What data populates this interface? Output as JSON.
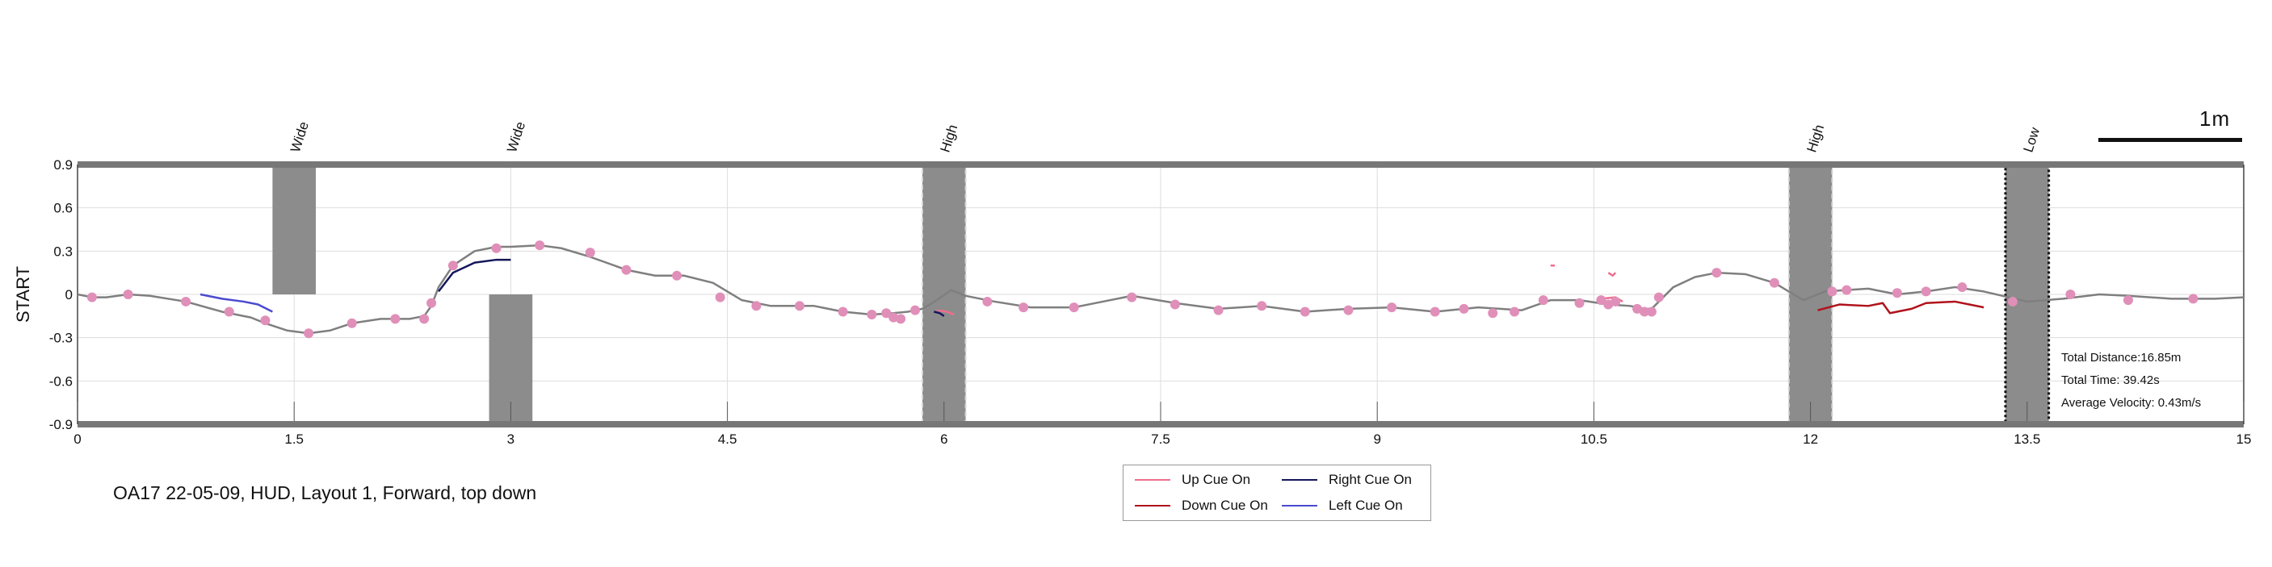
{
  "colors": {
    "path": "#7f7f7f",
    "marker": "#e08fb9",
    "obstacle": "#8c8c8c",
    "up_cue": "#ee6e8e",
    "down_cue": "#b0121b",
    "right_cue": "#14165a",
    "left_cue": "#4a4ad0",
    "frame": "#777777",
    "grid": "#dddddd"
  },
  "chart_data": {
    "type": "line",
    "title": "",
    "xlabel": "",
    "ylabel": "START",
    "xlim": [
      0,
      15
    ],
    "ylim": [
      -0.9,
      0.9
    ],
    "grid": true,
    "x_ticks": [
      "0",
      "1.5",
      "3",
      "4.5",
      "6",
      "7.5",
      "9",
      "10.5",
      "12",
      "13.5",
      "15"
    ],
    "y_ticks": [
      "0.9",
      "0.6",
      "0.3",
      "0",
      "-0.3",
      "-0.6",
      "-0.9"
    ],
    "path": {
      "x": [
        0,
        0.1,
        0.2,
        0.35,
        0.5,
        0.75,
        1.0,
        1.2,
        1.3,
        1.45,
        1.6,
        1.75,
        1.9,
        2.1,
        2.3,
        2.4,
        2.45,
        2.5,
        2.6,
        2.75,
        2.9,
        3.0,
        3.2,
        3.35,
        3.55,
        3.8,
        4.0,
        4.2,
        4.4,
        4.6,
        4.8,
        5.1,
        5.3,
        5.5,
        5.65,
        5.75,
        5.85,
        5.95,
        6.05,
        6.15,
        6.35,
        6.6,
        6.9,
        7.1,
        7.3,
        7.6,
        7.9,
        8.2,
        8.5,
        8.8,
        9.1,
        9.4,
        9.7,
        10.0,
        10.2,
        10.4,
        10.6,
        10.75,
        10.85,
        10.9,
        10.95,
        11.05,
        11.2,
        11.35,
        11.55,
        11.75,
        11.95,
        12.1,
        12.25,
        12.4,
        12.6,
        12.8,
        13.0,
        13.2,
        13.5,
        13.75,
        14.0,
        14.2,
        14.5,
        14.8,
        15.0
      ],
      "y": [
        0.0,
        -0.02,
        -0.02,
        0.0,
        -0.01,
        -0.05,
        -0.12,
        -0.16,
        -0.2,
        -0.25,
        -0.27,
        -0.25,
        -0.2,
        -0.17,
        -0.17,
        -0.15,
        -0.08,
        0.05,
        0.2,
        0.3,
        0.33,
        0.33,
        0.34,
        0.32,
        0.26,
        0.17,
        0.13,
        0.13,
        0.08,
        -0.04,
        -0.08,
        -0.08,
        -0.12,
        -0.14,
        -0.13,
        -0.12,
        -0.1,
        -0.04,
        0.03,
        -0.01,
        -0.05,
        -0.09,
        -0.09,
        -0.05,
        -0.01,
        -0.06,
        -0.1,
        -0.08,
        -0.12,
        -0.1,
        -0.09,
        -0.12,
        -0.09,
        -0.11,
        -0.04,
        -0.04,
        -0.07,
        -0.08,
        -0.1,
        -0.1,
        -0.05,
        0.05,
        0.12,
        0.15,
        0.14,
        0.08,
        -0.04,
        0.02,
        0.03,
        0.04,
        0.0,
        0.02,
        0.05,
        0.02,
        -0.05,
        -0.03,
        0.0,
        -0.01,
        -0.03,
        -0.03,
        -0.02
      ]
    },
    "markers": {
      "x": [
        0.1,
        0.35,
        0.75,
        1.05,
        1.3,
        1.6,
        1.9,
        2.2,
        2.4,
        2.45,
        2.6,
        2.9,
        3.2,
        3.55,
        3.8,
        4.15,
        4.45,
        4.7,
        5.0,
        5.3,
        5.5,
        5.6,
        5.65,
        5.7,
        5.8,
        6.3,
        6.55,
        6.9,
        7.3,
        7.6,
        7.9,
        8.2,
        8.5,
        8.8,
        9.1,
        9.4,
        9.6,
        9.8,
        9.95,
        10.15,
        10.4,
        10.55,
        10.6,
        10.65,
        10.8,
        10.85,
        10.9,
        10.95,
        11.35,
        11.75,
        12.15,
        12.25,
        12.6,
        12.8,
        13.05,
        13.4,
        13.8,
        14.2,
        14.65
      ],
      "y": [
        -0.02,
        0.0,
        -0.05,
        -0.12,
        -0.18,
        -0.27,
        -0.2,
        -0.17,
        -0.17,
        -0.06,
        0.2,
        0.32,
        0.34,
        0.29,
        0.17,
        0.13,
        -0.02,
        -0.08,
        -0.08,
        -0.12,
        -0.14,
        -0.13,
        -0.16,
        -0.17,
        -0.11,
        -0.05,
        -0.09,
        -0.09,
        -0.02,
        -0.07,
        -0.11,
        -0.08,
        -0.12,
        -0.11,
        -0.09,
        -0.12,
        -0.1,
        -0.13,
        -0.12,
        -0.04,
        -0.06,
        -0.04,
        -0.07,
        -0.05,
        -0.1,
        -0.12,
        -0.12,
        -0.02,
        0.15,
        0.08,
        0.02,
        0.03,
        0.01,
        0.02,
        0.05,
        -0.05,
        0.0,
        -0.04,
        -0.03
      ]
    },
    "obstacles": [
      {
        "label": "Wide",
        "x0": 1.35,
        "x1": 1.65,
        "y0": 0.0,
        "y1": 0.9,
        "style": "solid"
      },
      {
        "label": "Wide",
        "x0": 2.85,
        "x1": 3.15,
        "y0": -0.9,
        "y1": 0.0,
        "style": "solid"
      },
      {
        "label": "High",
        "x0": 5.85,
        "x1": 6.15,
        "y0": -0.9,
        "y1": 0.9,
        "style": "dashed-light"
      },
      {
        "label": "High",
        "x0": 11.85,
        "x1": 12.15,
        "y0": -0.9,
        "y1": 0.9,
        "style": "dashed-light"
      },
      {
        "label": "Low",
        "x0": 13.35,
        "x1": 13.65,
        "y0": -0.9,
        "y1": 0.9,
        "style": "dotted-dark"
      }
    ],
    "cues": [
      {
        "name": "Left Cue On",
        "color_key": "left_cue",
        "x": [
          0.85,
          1.0,
          1.15,
          1.25,
          1.35
        ],
        "y": [
          0.0,
          -0.03,
          -0.05,
          -0.07,
          -0.12
        ]
      },
      {
        "name": "Right Cue On",
        "color_key": "right_cue",
        "x": [
          2.5,
          2.6,
          2.75,
          2.9,
          3.0
        ],
        "y": [
          0.02,
          0.15,
          0.22,
          0.24,
          0.24
        ]
      },
      {
        "name": "Right Cue On",
        "color_key": "right_cue",
        "x": [
          5.93,
          5.97,
          6.0
        ],
        "y": [
          -0.12,
          -0.13,
          -0.15
        ]
      },
      {
        "name": "Up Cue On",
        "color_key": "up_cue",
        "x": [
          5.95,
          6.02,
          6.07
        ],
        "y": [
          -0.11,
          -0.12,
          -0.14
        ]
      },
      {
        "name": "Up Cue On",
        "color_key": "up_cue",
        "x": [
          10.2,
          10.23
        ],
        "y": [
          0.2,
          0.2
        ]
      },
      {
        "name": "Up Cue On",
        "color_key": "up_cue",
        "x": [
          10.6,
          10.63,
          10.65
        ],
        "y": [
          0.15,
          0.13,
          0.15
        ]
      },
      {
        "name": "Up Cue On",
        "color_key": "up_cue",
        "x": [
          10.55,
          10.65,
          10.7
        ],
        "y": [
          -0.03,
          -0.02,
          -0.05
        ]
      },
      {
        "name": "Down Cue On",
        "color_key": "down_cue",
        "x": [
          12.05,
          12.2,
          12.4,
          12.5,
          12.55,
          12.7,
          12.8,
          13.0,
          13.1,
          13.2
        ],
        "y": [
          -0.11,
          -0.07,
          -0.08,
          -0.06,
          -0.13,
          -0.1,
          -0.06,
          -0.05,
          -0.07,
          -0.09
        ]
      }
    ],
    "legend": {
      "placement": "bottom-center",
      "entries": [
        {
          "label": "Up Cue On",
          "color_key": "up_cue"
        },
        {
          "label": "Right Cue On",
          "color_key": "right_cue"
        },
        {
          "label": "Down Cue On",
          "color_key": "down_cue"
        },
        {
          "label": "Left Cue On",
          "color_key": "left_cue"
        }
      ]
    }
  },
  "caption": "OA17 22-05-09, HUD, Layout 1, Forward, top down",
  "stats": {
    "distance": "Total Distance:16.85m",
    "time": "Total Time: 39.42s",
    "velocity": "Average Velocity: 0.43m/s"
  },
  "scale": {
    "label": "1m"
  }
}
